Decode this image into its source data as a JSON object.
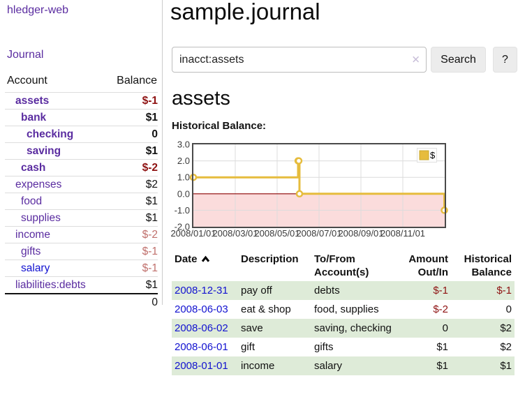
{
  "colors": {
    "link_purple": "#5a2ca0",
    "link_blue": "#1212d0",
    "negative_strong": "#8e1212",
    "negative_soft": "#c0706c",
    "row_stripe_green": "#deebd8",
    "chart_gold": "#e6bc3d",
    "chart_negative_pink": "#fbdcdc",
    "chart_zero_line": "#8b0000"
  },
  "sidebar": {
    "brand": "hledger-web",
    "journal_link": "Journal",
    "headers": [
      "Account",
      "Balance"
    ],
    "rows": [
      {
        "account": "assets",
        "balance": "$-1",
        "indent": 1,
        "bold": true
      },
      {
        "account": "bank",
        "balance": "$1",
        "indent": 2,
        "bold": true
      },
      {
        "account": "checking",
        "balance": "0",
        "indent": 3,
        "bold": true
      },
      {
        "account": "saving",
        "balance": "$1",
        "indent": 3,
        "bold": true
      },
      {
        "account": "cash",
        "balance": "$-2",
        "indent": 2,
        "bold": true
      },
      {
        "account": "expenses",
        "balance": "$2",
        "indent": 1,
        "bold": false
      },
      {
        "account": "food",
        "balance": "$1",
        "indent": 2,
        "bold": false
      },
      {
        "account": "supplies",
        "balance": "$1",
        "indent": 2,
        "bold": false
      },
      {
        "account": "income",
        "balance": "$-2",
        "indent": 1,
        "bold": false
      },
      {
        "account": "gifts",
        "balance": "$-1",
        "indent": 2,
        "bold": false
      },
      {
        "account": "salary",
        "balance": "$-1",
        "indent": 2,
        "bold": false,
        "unvisited": true
      },
      {
        "account": "liabilities:debts",
        "balance": "$1",
        "indent": 1,
        "bold": false
      }
    ],
    "total": "0"
  },
  "main": {
    "title": "sample.journal",
    "search": {
      "value": "inacct:assets",
      "clear_glyph": "✕",
      "button_label": "Search",
      "help_label": "?"
    },
    "account_heading": "assets",
    "chart_label": "Historical Balance:"
  },
  "chart_data": {
    "type": "line",
    "step": true,
    "title": "Historical Balance:",
    "series": [
      {
        "name": "$",
        "color": "#e6bc3d",
        "points": [
          [
            "2008-01-01",
            1
          ],
          [
            "2008-06-01",
            2
          ],
          [
            "2008-06-02",
            2
          ],
          [
            "2008-06-03",
            0
          ],
          [
            "2008-12-31",
            -1
          ]
        ]
      }
    ],
    "ylim": [
      -2,
      3
    ],
    "ytick_values": [
      3,
      2,
      1,
      0,
      -1,
      -2
    ],
    "ytick_labels": [
      "3.0",
      "2.0",
      "1.0",
      "0.0",
      "-1.0",
      "-2.0"
    ],
    "xtick_months": [
      0,
      2,
      4,
      6,
      8,
      10
    ],
    "xtick_labels": [
      "2008/01/01",
      "2008/03/01",
      "2008/05/01",
      "2008/07/01",
      "2008/09/01",
      "2008/11/01"
    ],
    "x_range_months": 12,
    "grid": true,
    "legend_position": "top-right",
    "negative_fill": "#fbdcdc",
    "zero_line_color": "#8b0000",
    "grid_color": "#dcdcdc"
  },
  "register": {
    "headers": [
      "Date",
      "Description",
      "To/From Account(s)",
      "Amount Out/In",
      "Historical Balance"
    ],
    "rows": [
      {
        "date": "2008-12-31",
        "description": "pay off",
        "accounts": "debts",
        "amount": "$-1",
        "balance": "$-1"
      },
      {
        "date": "2008-06-03",
        "description": "eat & shop",
        "accounts": "food, supplies",
        "amount": "$-2",
        "balance": "0"
      },
      {
        "date": "2008-06-02",
        "description": "save",
        "accounts": "saving, checking",
        "amount": "0",
        "balance": "$2"
      },
      {
        "date": "2008-06-01",
        "description": "gift",
        "accounts": "gifts",
        "amount": "$1",
        "balance": "$2"
      },
      {
        "date": "2008-01-01",
        "description": "income",
        "accounts": "salary",
        "amount": "$1",
        "balance": "$1"
      }
    ]
  }
}
